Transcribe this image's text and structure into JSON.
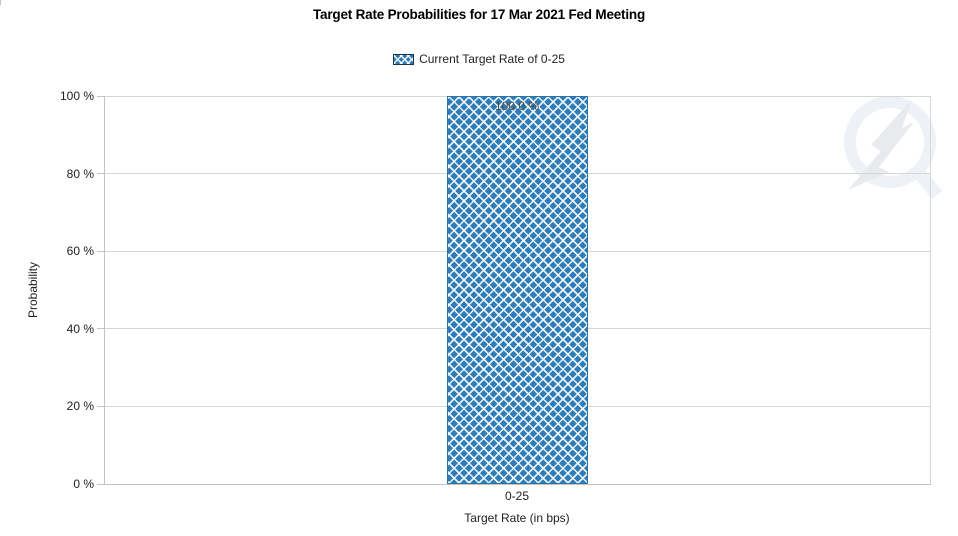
{
  "chart_data": {
    "type": "bar",
    "title": "Target Rate Probabilities for 17 Mar 2021 Fed Meeting",
    "categories": [
      "0-25"
    ],
    "values": [
      100.0
    ],
    "value_labels": [
      "100.0 %"
    ],
    "xlabel": "Target Rate (in bps)",
    "ylabel": "Probability",
    "ylim": [
      0,
      100
    ],
    "ytick_labels": [
      "0 %",
      "20 %",
      "40 %",
      "60 %",
      "80 %",
      "100 %"
    ],
    "grid": true,
    "legend_position": "top-center",
    "legend": [
      {
        "name": "Current Target Rate of 0-25",
        "fill": "#2e7cb8",
        "pattern": "diagonal-crosshatch",
        "swatch_border": "#17374f"
      }
    ],
    "colors": {
      "bar_fill": "#2e7cb8",
      "hatch": "#ffffff",
      "gridline": "#d6d6d6",
      "axis_line": "#c2c2c2",
      "title_text": "#000000",
      "tick_text": "#222222",
      "bar_label_text": "#4a4a42",
      "watermark": "#eef1f6"
    },
    "icons": {
      "watermark": "quikstrike-lightning-q-logo"
    }
  }
}
